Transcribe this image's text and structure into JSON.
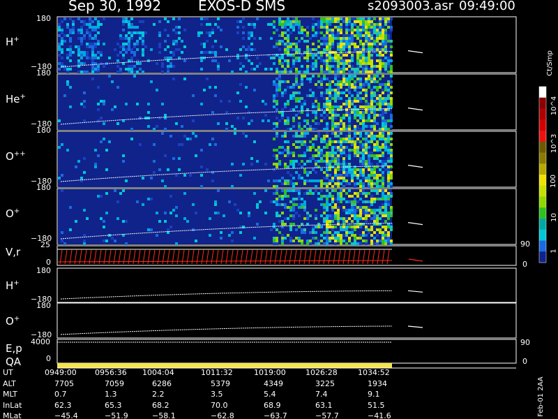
{
  "header": {
    "date": "Sep 30, 1992",
    "mission": "EXOS-D SMS",
    "file": "s2093003.asr",
    "time": "09:49:00"
  },
  "colors": {
    "background": "#000000",
    "spectrogram_bg": "#10238a",
    "trace": "#ffffff",
    "vr_trace": "#ff2a1a",
    "qa_bar": "#f4e64c"
  },
  "panels": [
    {
      "id": "h-plus",
      "label": "H",
      "sup": "+",
      "ymax": "180",
      "ymin": "−180",
      "kind": "spectrogram"
    },
    {
      "id": "he-plus",
      "label": "He",
      "sup": "+",
      "ymax": "180",
      "ymin": "−180",
      "kind": "spectrogram"
    },
    {
      "id": "o-plus-plus",
      "label": "O",
      "sup": "++",
      "ymax": "180",
      "ymin": "−180",
      "kind": "spectrogram"
    },
    {
      "id": "o-plus",
      "label": "O",
      "sup": "+",
      "ymax": "180",
      "ymin": "−180",
      "kind": "spectrogram"
    },
    {
      "id": "vr",
      "label": "V,r",
      "sup": "",
      "ymax": "25",
      "ymin": "0",
      "rmax": "90",
      "rmin": "0",
      "kind": "line"
    },
    {
      "id": "h-plus-line",
      "label": "H",
      "sup": "+",
      "ymax": "180",
      "ymin": "−180",
      "kind": "line"
    },
    {
      "id": "o-plus-line",
      "label": "O",
      "sup": "+",
      "ymax": "180",
      "ymin": "−180",
      "kind": "line"
    },
    {
      "id": "ep",
      "label": "E,p",
      "sup": "",
      "ymax": "4000",
      "ymin": "0",
      "rmax": "90",
      "rmin": "0",
      "kind": "line"
    },
    {
      "id": "qa",
      "label": "QA",
      "sup": "",
      "kind": "bar"
    }
  ],
  "colorbar": {
    "unit": "Ct/Smp",
    "labels": [
      "10^4",
      "10^3",
      "100",
      "10",
      "1"
    ],
    "colors": [
      "#ffffff",
      "#8b0000",
      "#b00000",
      "#d40000",
      "#f01010",
      "#6b5a00",
      "#8a7a00",
      "#b8a800",
      "#f0e000",
      "#c8e000",
      "#90d800",
      "#30c020",
      "#00a8a0",
      "#00c8d8",
      "#1a6adf",
      "#10238a"
    ]
  },
  "chart_data": {
    "type": "heatmap",
    "x_axis": "UT",
    "x_ticks": [
      "0949:00",
      "0956:36",
      "1004:04",
      "1011:32",
      "1019:00",
      "1026:28",
      "1034:52"
    ],
    "ephemeris": [
      {
        "name": "UT",
        "values": [
          "0949:00",
          "0956:36",
          "1004:04",
          "1011:32",
          "1019:00",
          "1026:28",
          "1034:52"
        ]
      },
      {
        "name": "ALT",
        "values": [
          "7705",
          "7059",
          "6286",
          "5379",
          "4349",
          "3225",
          "1934"
        ]
      },
      {
        "name": "MLT",
        "values": [
          "0.7",
          "1.3",
          "2.2",
          "3.5",
          "5.4",
          "7.4",
          "9.1"
        ]
      },
      {
        "name": "InLat",
        "values": [
          "62.3",
          "65.3",
          "68.2",
          "70.0",
          "68.9",
          "63.1",
          "51.5"
        ]
      },
      {
        "name": "MLat",
        "values": [
          "−45.4",
          "−51.9",
          "−58.1",
          "−62.8",
          "−63.7",
          "−57.7",
          "−41.6"
        ]
      }
    ],
    "y_range": [
      -180,
      180
    ],
    "color_scale": {
      "min": 1,
      "max": 10000,
      "log": true
    }
  },
  "footer": {
    "stamp": "Feb-01 2AA"
  }
}
